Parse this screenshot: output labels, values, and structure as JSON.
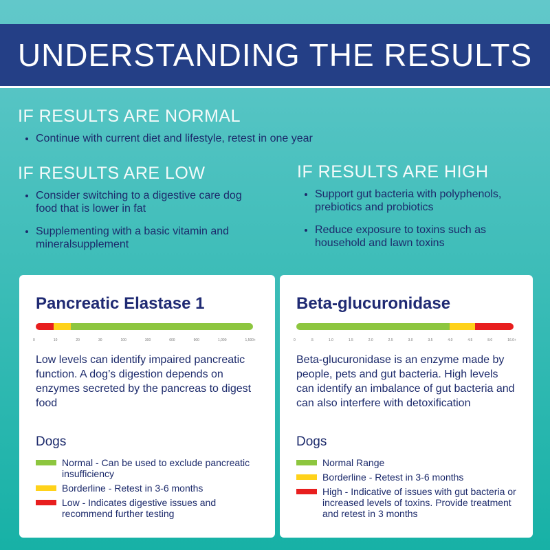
{
  "header": {
    "title": "UNDERSTANDING THE RESULTS"
  },
  "sections": [
    {
      "heading": "IF RESULTS ARE NORMAL",
      "bullets": [
        "Continue with current diet and lifestyle, retest in one year"
      ]
    },
    {
      "heading": "IF RESULTS ARE LOW",
      "bullets": [
        "Consider switching to a digestive care dog food that is lower in fat",
        "Supplementing with a basic vitamin and mineralsupplement"
      ]
    },
    {
      "heading": "IF RESULTS ARE HIGH",
      "bullets": [
        "Support gut bacteria with polyphenols, prebiotics and probiotics",
        "Reduce exposure to toxins such as household and lawn toxins"
      ]
    }
  ],
  "cards": [
    {
      "title": "Pancreatic Elastase 1",
      "scale": [
        "0",
        "10",
        "20",
        "30",
        "100",
        "300",
        "600",
        "900",
        "1,000",
        "1,500+"
      ],
      "description": "Low levels can identify impaired pancreatic function. A dog’s digestion depends on enzymes secreted by the pancreas to digest food",
      "legend_title": "Dogs",
      "legend": [
        "Normal -  Can be used to exclude pancreatic insufficiency",
        "Borderline - Retest in 3-6 months",
        "Low - Indicates digestive issues and recommend further testing"
      ]
    },
    {
      "title": "Beta-glucuronidase",
      "scale": [
        "0",
        ".5",
        "1.0",
        "1.5",
        "2.0",
        "2.5",
        "3.0",
        "3.5",
        "4.0",
        "4.5",
        "8.0",
        "16.0+"
      ],
      "description": "Beta-glucuronidase is an enzyme made by people, pets and gut bacteria. High levels can identify an imbalance of gut bacteria and can also interfere with detoxification",
      "legend_title": "Dogs",
      "legend": [
        "Normal Range",
        "Borderline - Retest in 3-6 months",
        "High - Indicative of issues with gut bacteria or increased levels of toxins. Provide treatment and retest in 3 months"
      ]
    }
  ]
}
